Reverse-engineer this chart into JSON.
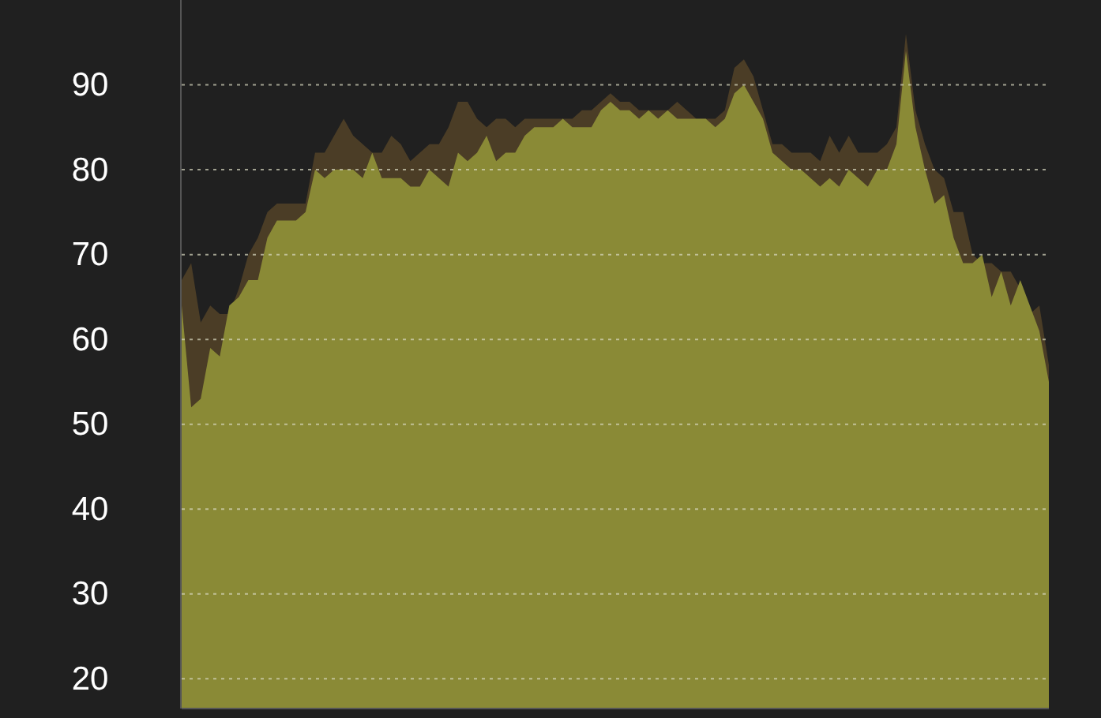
{
  "chart_data": {
    "type": "area",
    "categories": [
      null,
      null,
      null,
      null,
      null,
      null,
      null,
      null,
      null,
      null,
      null,
      null,
      null,
      null,
      null,
      null,
      null,
      null,
      null,
      null,
      null,
      null,
      null,
      null,
      null,
      null,
      null,
      null,
      null,
      null,
      null,
      null,
      null,
      null,
      null,
      null,
      null,
      null,
      null,
      null,
      null,
      null,
      null,
      null,
      null,
      null,
      null,
      null,
      null,
      null,
      null,
      null,
      null,
      null,
      null,
      null,
      null,
      null,
      null,
      null,
      null,
      null,
      null,
      null,
      null,
      null,
      null,
      null,
      null,
      null,
      null,
      null,
      null,
      null,
      null,
      null,
      null,
      null,
      null,
      null,
      null,
      null,
      null,
      null,
      null,
      null,
      null,
      null,
      null,
      null,
      null,
      null
    ],
    "series": [
      {
        "color": "#4b3d26",
        "values": [
          67,
          69,
          62,
          64,
          63,
          63,
          66,
          70,
          72,
          75,
          76,
          76,
          76,
          76,
          82,
          82,
          84,
          86,
          84,
          83,
          82,
          82,
          84,
          83,
          81,
          82,
          83,
          83,
          85,
          88,
          88,
          86,
          85,
          86,
          86,
          85,
          86,
          86,
          86,
          86,
          86,
          86,
          87,
          87,
          88,
          89,
          88,
          88,
          87,
          87,
          87,
          87,
          88,
          87,
          86,
          86,
          86,
          87,
          92,
          93,
          91,
          87,
          83,
          83,
          82,
          82,
          82,
          81,
          84,
          82,
          84,
          82,
          82,
          82,
          83,
          85,
          96,
          87,
          83,
          80,
          79,
          75,
          75,
          70,
          69,
          69,
          68,
          68,
          66,
          63,
          64,
          57
        ]
      },
      {
        "color": "#8a8a36",
        "values": [
          64,
          52,
          53,
          59,
          58,
          64,
          65,
          67,
          67,
          72,
          74,
          74,
          74,
          75,
          80,
          79,
          80,
          80,
          80,
          79,
          82,
          79,
          79,
          79,
          78,
          78,
          80,
          79,
          78,
          82,
          81,
          82,
          84,
          81,
          82,
          82,
          84,
          85,
          85,
          85,
          86,
          85,
          85,
          85,
          87,
          88,
          87,
          87,
          86,
          87,
          86,
          87,
          86,
          86,
          86,
          86,
          85,
          86,
          89,
          90,
          88,
          86,
          82,
          81,
          80,
          80,
          79,
          78,
          79,
          78,
          80,
          79,
          78,
          80,
          80,
          83,
          94,
          85,
          80,
          76,
          77,
          72,
          69,
          69,
          70,
          65,
          68,
          64,
          67,
          64,
          61,
          55
        ]
      }
    ],
    "ylim": [
      16.5,
      100
    ],
    "yticks": [
      20,
      30,
      40,
      50,
      60,
      70,
      80,
      90
    ],
    "grid": "y",
    "tick_labels": "y"
  }
}
